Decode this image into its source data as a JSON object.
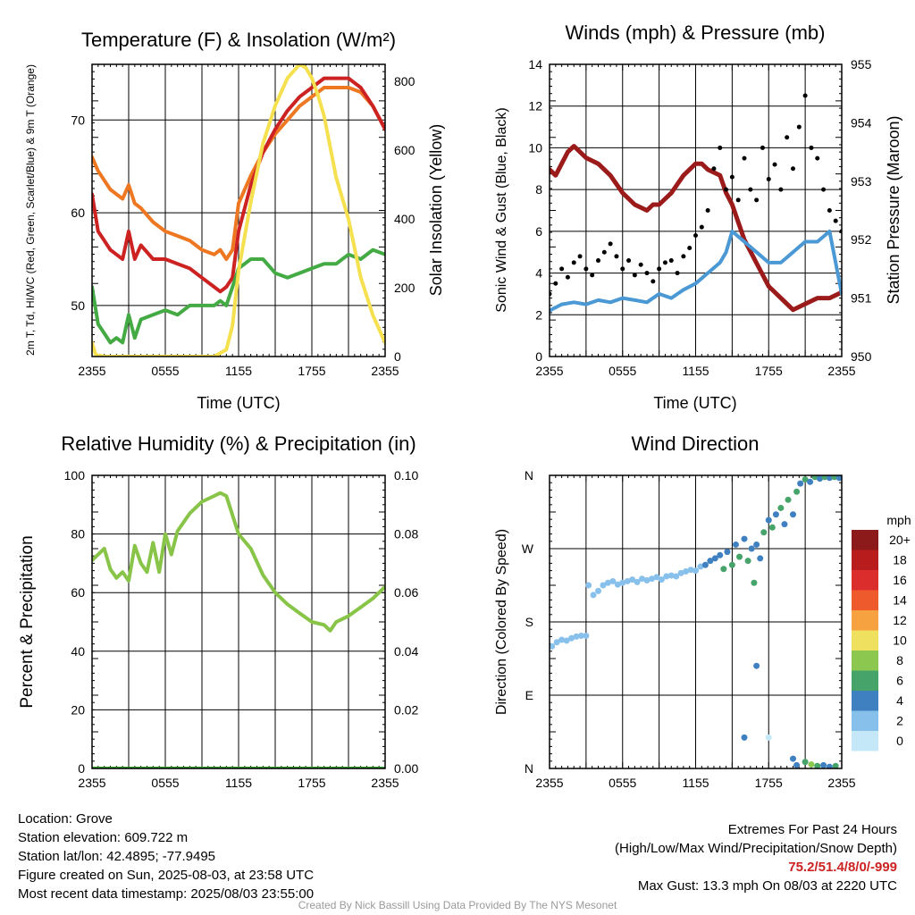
{
  "chart_data": [
    {
      "id": "temperature",
      "type": "line",
      "title": "Temperature (F) & Insolation (W/m²)",
      "xlabel": "Time (UTC)",
      "ylabel_left": "2m T, Td, HI/WC (Red, Green, Scarlet/Blue) & 9m T (Orange)",
      "ylabel_right": "Solar Insolation (Yellow)",
      "x_ticks": [
        "2355",
        "0555",
        "1155",
        "1755",
        "2355"
      ],
      "xlim": [
        0,
        24
      ],
      "y_left_range": [
        44.5,
        76
      ],
      "y_left_ticks": [
        50,
        60,
        70
      ],
      "y_right_range": [
        0,
        850
      ],
      "y_right_ticks": [
        0,
        200,
        400,
        600,
        800
      ],
      "grid": true,
      "series": [
        {
          "axis": "left",
          "color": "#ee7722",
          "x": [
            0,
            0.5,
            1,
            1.5,
            2,
            2.5,
            3,
            3.5,
            4,
            5,
            6,
            7,
            8,
            9,
            10,
            10.5,
            11,
            11.5,
            12,
            13,
            14,
            15,
            16,
            17,
            18,
            19,
            20,
            21,
            22,
            23,
            24
          ],
          "y": [
            66,
            64.5,
            63.5,
            62.5,
            62,
            61.5,
            63,
            61,
            60.5,
            59,
            58,
            57.5,
            57,
            56,
            55.5,
            56,
            55,
            56,
            61,
            64,
            66.5,
            68.5,
            70,
            71.5,
            72.5,
            73.5,
            73.5,
            73.5,
            73,
            71.5,
            69
          ]
        },
        {
          "axis": "left",
          "color": "#cc2222",
          "x": [
            0,
            0.5,
            1,
            1.5,
            2,
            2.5,
            3,
            3.5,
            4,
            5,
            6,
            7,
            8,
            9,
            10,
            10.5,
            11,
            11.5,
            12,
            13,
            14,
            15,
            16,
            17,
            18,
            19,
            20,
            21,
            22,
            23,
            24
          ],
          "y": [
            62,
            58,
            57,
            56,
            55.5,
            55,
            58,
            55,
            56.5,
            55,
            55,
            54.5,
            54,
            53,
            52,
            51.5,
            52,
            53,
            58,
            63,
            66.5,
            69,
            71,
            72.5,
            73.5,
            74.5,
            74.5,
            74.5,
            73.5,
            71.5,
            69
          ]
        },
        {
          "axis": "left",
          "color": "#44aa44",
          "x": [
            0,
            0.5,
            1,
            1.5,
            2,
            2.5,
            3,
            3.5,
            4,
            5,
            6,
            7,
            8,
            9,
            10,
            10.5,
            11,
            11.5,
            12,
            13,
            14,
            15,
            16,
            17,
            18,
            19,
            20,
            21,
            22,
            23,
            24
          ],
          "y": [
            52,
            48,
            47,
            46,
            46.5,
            46,
            49,
            46.5,
            48.5,
            49,
            49.5,
            49,
            50,
            50,
            50,
            50.5,
            50,
            52,
            54,
            55,
            55,
            53.5,
            53,
            53.5,
            54,
            54.5,
            54.5,
            55.5,
            55,
            56,
            55.5
          ]
        },
        {
          "axis": "right",
          "color": "#f5e050",
          "x": [
            0,
            0.3,
            1,
            2,
            3,
            4,
            5,
            6,
            7,
            8,
            9,
            10,
            11,
            11.5,
            12,
            13,
            14,
            15,
            16,
            17,
            17.5,
            18,
            18.5,
            19,
            20,
            21,
            22,
            23,
            24
          ],
          "y": [
            40,
            5,
            0,
            0,
            0,
            0,
            0,
            0,
            0,
            0,
            0,
            0,
            20,
            90,
            250,
            450,
            620,
            730,
            810,
            850,
            840,
            810,
            760,
            700,
            520,
            400,
            230,
            120,
            40
          ]
        }
      ]
    },
    {
      "id": "winds",
      "type": "line",
      "title": "Winds (mph) & Pressure (mb)",
      "xlabel": "Time (UTC)",
      "ylabel_left": "Sonic Wind & Gust (Blue, Black)",
      "ylabel_right": "Station Pressure (Maroon)",
      "x_ticks": [
        "2355",
        "0555",
        "1155",
        "1755",
        "2355"
      ],
      "xlim": [
        0,
        24
      ],
      "y_left_range": [
        0,
        14
      ],
      "y_left_ticks": [
        0,
        2,
        4,
        6,
        8,
        10,
        12,
        14
      ],
      "y_right_range": [
        950,
        955
      ],
      "y_right_ticks": [
        950,
        951,
        952,
        953,
        954,
        955
      ],
      "grid": true,
      "series": [
        {
          "axis": "right",
          "color": "#9b1b1b",
          "x": [
            0,
            0.5,
            1,
            1.5,
            2,
            3,
            4,
            5,
            6,
            7,
            8,
            8.5,
            9,
            10,
            11,
            12,
            12.5,
            13,
            14,
            14.5,
            15,
            16,
            17,
            18,
            19,
            20,
            21,
            22,
            23,
            24
          ],
          "y": [
            953.2,
            953.1,
            953.3,
            953.5,
            953.6,
            953.4,
            953.3,
            953.1,
            952.8,
            952.6,
            952.5,
            952.6,
            952.6,
            952.8,
            953.1,
            953.3,
            953.3,
            953.2,
            953.1,
            952.8,
            952.6,
            952.0,
            951.6,
            951.2,
            951.0,
            950.8,
            950.9,
            951.0,
            951.0,
            951.1
          ]
        },
        {
          "axis": "left",
          "color": "#4a98d4",
          "x": [
            0,
            1,
            2,
            3,
            4,
            5,
            6,
            7,
            8,
            9,
            10,
            11,
            12,
            13,
            14,
            14.5,
            15,
            16,
            17,
            18,
            19,
            20,
            21,
            22,
            23,
            24
          ],
          "y": [
            2.2,
            2.5,
            2.6,
            2.5,
            2.7,
            2.6,
            2.8,
            2.7,
            2.6,
            3.0,
            2.8,
            3.2,
            3.5,
            4.0,
            4.5,
            5.0,
            6.0,
            5.5,
            5.0,
            4.5,
            4.5,
            5.0,
            5.5,
            5.5,
            6.0,
            3.0
          ]
        },
        {
          "axis": "left",
          "color": "#000000",
          "style": "dots",
          "x": [
            0,
            0.5,
            1,
            1.5,
            2,
            2.5,
            3,
            3.5,
            4,
            4.5,
            5,
            5.5,
            6,
            6.5,
            7,
            7.5,
            8,
            8.5,
            9,
            9.5,
            10,
            10.5,
            11,
            11.5,
            12,
            12.5,
            13,
            13.5,
            14,
            14.5,
            15,
            15.5,
            16,
            16.5,
            17,
            17.5,
            18,
            18.5,
            19,
            19.5,
            20,
            20.5,
            21,
            21.5,
            22,
            22.5,
            23,
            23.5,
            24
          ],
          "y": [
            3.0,
            3.5,
            4.2,
            3.8,
            4.5,
            4.8,
            4.2,
            3.9,
            4.6,
            5.0,
            5.4,
            4.8,
            4.2,
            4.6,
            3.9,
            4.4,
            4.0,
            3.6,
            4.2,
            4.5,
            4.6,
            4.0,
            4.8,
            5.2,
            5.8,
            6.2,
            7.0,
            9.0,
            10.0,
            8.0,
            8.6,
            7.5,
            9.5,
            8.0,
            7.5,
            10.0,
            8.5,
            9.2,
            8.0,
            10.5,
            9.0,
            11.0,
            12.5,
            10.0,
            9.5,
            8.0,
            7.0,
            6.5,
            6.0
          ]
        }
      ]
    },
    {
      "id": "humidity",
      "type": "line",
      "title": "Relative Humidity (%) & Precipitation (in)",
      "xlabel": "",
      "ylabel_left": "Percent & Precipitation",
      "ylabel_right": "",
      "x_ticks": [
        "2355",
        "0555",
        "1155",
        "1755",
        "2355"
      ],
      "xlim": [
        0,
        24
      ],
      "y_left_range": [
        0,
        100
      ],
      "y_left_ticks": [
        0,
        20,
        40,
        60,
        80,
        100
      ],
      "y_right_range": [
        0,
        0.1
      ],
      "y_right_ticks": [
        "0.00",
        "0.02",
        "0.04",
        "0.06",
        "0.08",
        "0.10"
      ],
      "grid": true,
      "series": [
        {
          "axis": "left",
          "color": "#88c448",
          "x": [
            0,
            0.5,
            1,
            1.5,
            2,
            2.5,
            3,
            3.5,
            4,
            4.5,
            5,
            5.5,
            6,
            6.5,
            7,
            8,
            9,
            10,
            10.5,
            11,
            12,
            13,
            14,
            15,
            16,
            17,
            18,
            19,
            19.5,
            20,
            21,
            22,
            23,
            24
          ],
          "y": [
            71,
            73,
            75,
            68,
            65,
            67,
            64,
            76,
            70,
            67,
            77,
            67,
            80,
            73,
            81,
            87,
            91,
            93,
            94,
            93,
            80,
            75,
            66,
            60,
            56,
            53,
            50,
            49,
            47,
            50,
            52,
            55,
            58,
            62
          ]
        },
        {
          "axis": "right",
          "color": "#33a033",
          "x": [
            0,
            24
          ],
          "y": [
            0,
            0
          ]
        }
      ]
    },
    {
      "id": "wind-direction",
      "type": "scatter",
      "title": "Wind Direction",
      "xlabel": "",
      "ylabel": "Direction (Colored By Speed)",
      "x_ticks": [
        "2355",
        "0555",
        "1155",
        "1755",
        "2355"
      ],
      "xlim": [
        0,
        24
      ],
      "y_ticks": [
        "N",
        "E",
        "S",
        "W",
        "N"
      ],
      "y_range": [
        0,
        360
      ],
      "grid": true,
      "colorbar": {
        "label": "mph",
        "levels": [
          "20+",
          "18",
          "16",
          "14",
          "12",
          "10",
          "8",
          "6",
          "4",
          "2",
          "0"
        ],
        "colors": [
          "#8c1a1a",
          "#b81c1c",
          "#dc2d2d",
          "#ef5a2c",
          "#f7a240",
          "#f0e060",
          "#8cc850",
          "#46a46a",
          "#3f80c0",
          "#88c0ec",
          "#c4e8f8"
        ]
      },
      "points": [
        {
          "x": 0.2,
          "y": 150,
          "s": 2
        },
        {
          "x": 0.6,
          "y": 155,
          "s": 2
        },
        {
          "x": 1.0,
          "y": 158,
          "s": 2
        },
        {
          "x": 1.4,
          "y": 157,
          "s": 2
        },
        {
          "x": 1.8,
          "y": 160,
          "s": 2
        },
        {
          "x": 2.2,
          "y": 162,
          "s": 2
        },
        {
          "x": 2.6,
          "y": 163,
          "s": 2
        },
        {
          "x": 3.0,
          "y": 163,
          "s": 2
        },
        {
          "x": 3.2,
          "y": 225,
          "s": 2
        },
        {
          "x": 3.6,
          "y": 213,
          "s": 2
        },
        {
          "x": 4.0,
          "y": 218,
          "s": 2
        },
        {
          "x": 4.4,
          "y": 225,
          "s": 2
        },
        {
          "x": 4.8,
          "y": 228,
          "s": 2
        },
        {
          "x": 5.2,
          "y": 230,
          "s": 2
        },
        {
          "x": 5.6,
          "y": 226,
          "s": 2
        },
        {
          "x": 6.0,
          "y": 228,
          "s": 2
        },
        {
          "x": 6.4,
          "y": 230,
          "s": 2
        },
        {
          "x": 6.8,
          "y": 232,
          "s": 2
        },
        {
          "x": 7.2,
          "y": 229,
          "s": 2
        },
        {
          "x": 7.6,
          "y": 233,
          "s": 2
        },
        {
          "x": 8.0,
          "y": 231,
          "s": 2
        },
        {
          "x": 8.4,
          "y": 233,
          "s": 2
        },
        {
          "x": 8.8,
          "y": 235,
          "s": 2
        },
        {
          "x": 9.2,
          "y": 232,
          "s": 2
        },
        {
          "x": 9.6,
          "y": 236,
          "s": 2
        },
        {
          "x": 10.0,
          "y": 237,
          "s": 2
        },
        {
          "x": 10.4,
          "y": 236,
          "s": 2
        },
        {
          "x": 10.8,
          "y": 240,
          "s": 2
        },
        {
          "x": 11.2,
          "y": 242,
          "s": 2
        },
        {
          "x": 11.6,
          "y": 244,
          "s": 2
        },
        {
          "x": 12.0,
          "y": 243,
          "s": 2
        },
        {
          "x": 12.4,
          "y": 248,
          "s": 2
        },
        {
          "x": 12.8,
          "y": 250,
          "s": 4
        },
        {
          "x": 13.2,
          "y": 255,
          "s": 4
        },
        {
          "x": 13.6,
          "y": 258,
          "s": 4
        },
        {
          "x": 14.0,
          "y": 262,
          "s": 4
        },
        {
          "x": 14.3,
          "y": 245,
          "s": 6
        },
        {
          "x": 14.6,
          "y": 266,
          "s": 4
        },
        {
          "x": 15.0,
          "y": 250,
          "s": 6
        },
        {
          "x": 15.3,
          "y": 275,
          "s": 4
        },
        {
          "x": 15.6,
          "y": 260,
          "s": 6
        },
        {
          "x": 16.0,
          "y": 282,
          "s": 4
        },
        {
          "x": 16.3,
          "y": 255,
          "s": 6
        },
        {
          "x": 16.6,
          "y": 270,
          "s": 4
        },
        {
          "x": 16.8,
          "y": 228,
          "s": 6
        },
        {
          "x": 17.0,
          "y": 275,
          "s": 4
        },
        {
          "x": 17.3,
          "y": 258,
          "s": 4
        },
        {
          "x": 17.6,
          "y": 290,
          "s": 6
        },
        {
          "x": 18.0,
          "y": 305,
          "s": 4
        },
        {
          "x": 18.3,
          "y": 296,
          "s": 6
        },
        {
          "x": 18.6,
          "y": 312,
          "s": 4
        },
        {
          "x": 19.0,
          "y": 320,
          "s": 6
        },
        {
          "x": 19.3,
          "y": 300,
          "s": 4
        },
        {
          "x": 19.6,
          "y": 330,
          "s": 6
        },
        {
          "x": 20.0,
          "y": 312,
          "s": 4
        },
        {
          "x": 20.3,
          "y": 340,
          "s": 6
        },
        {
          "x": 20.6,
          "y": 350,
          "s": 4
        },
        {
          "x": 21.0,
          "y": 355,
          "s": 6
        },
        {
          "x": 21.4,
          "y": 352,
          "s": 4
        },
        {
          "x": 21.8,
          "y": 358,
          "s": 6
        },
        {
          "x": 22.2,
          "y": 356,
          "s": 4
        },
        {
          "x": 22.6,
          "y": 358,
          "s": 6
        },
        {
          "x": 23.0,
          "y": 357,
          "s": 4
        },
        {
          "x": 23.4,
          "y": 358,
          "s": 6
        },
        {
          "x": 23.8,
          "y": 357,
          "s": 4
        },
        {
          "x": 17.0,
          "y": 126,
          "s": 4
        },
        {
          "x": 16.0,
          "y": 38,
          "s": 4
        },
        {
          "x": 18.0,
          "y": 38,
          "s": 0
        },
        {
          "x": 20.0,
          "y": 12,
          "s": 4
        },
        {
          "x": 20.3,
          "y": 4,
          "s": 4
        },
        {
          "x": 21.0,
          "y": 8,
          "s": 6
        },
        {
          "x": 21.5,
          "y": 5,
          "s": 8
        },
        {
          "x": 22.0,
          "y": 3,
          "s": 6
        },
        {
          "x": 22.5,
          "y": 4,
          "s": 4
        },
        {
          "x": 23.0,
          "y": 2,
          "s": 4
        },
        {
          "x": 23.5,
          "y": 3,
          "s": 6
        }
      ]
    }
  ],
  "info": {
    "location": "Location: Grove",
    "elevation": "Station elevation: 609.722 m",
    "latlon": "Station lat/lon: 42.4895; -77.9495",
    "created": "Figure created on Sun, 2025-08-03, at 23:58 UTC",
    "recent": "Most recent data timestamp: 2025/08/03 23:55:00"
  },
  "extremes": {
    "heading": "Extremes For Past 24 Hours",
    "legend": "(High/Low/Max Wind/Precipitation/Snow Depth)",
    "values": "75.2/51.4/8/0/-999",
    "gust": "Max Gust: 13.3 mph On 08/03 at 2220 UTC"
  },
  "credit": "Created By Nick Bassill Using Data Provided By The NYS Mesonet"
}
